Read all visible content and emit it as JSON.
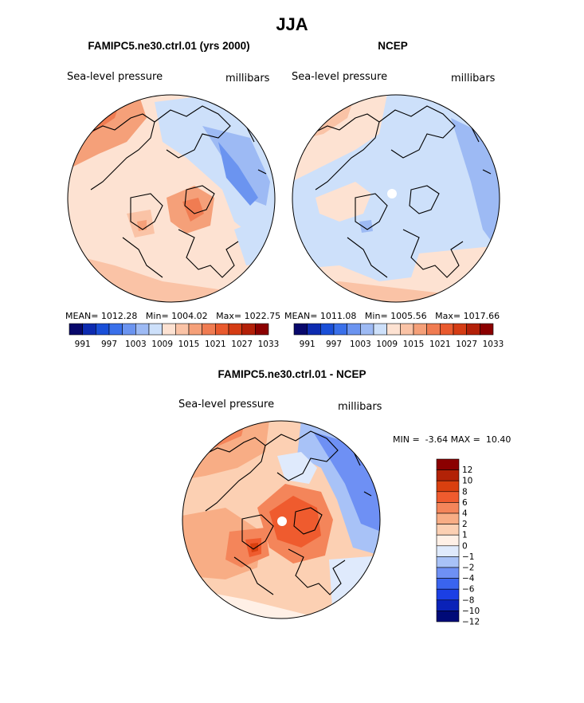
{
  "season": "JJA",
  "colors": {
    "abs_scale": [
      "#08086b",
      "#0d2bb0",
      "#1a4fd8",
      "#3a70ea",
      "#6b94f0",
      "#9dbaf4",
      "#cde0fa",
      "#fde2d2",
      "#fac3a6",
      "#f5a079",
      "#f07c52",
      "#e95a2e",
      "#d53c14",
      "#b32008",
      "#8b0000"
    ],
    "diff_scale": [
      "#000a78",
      "#0a22b8",
      "#1b3fe4",
      "#3a64ef",
      "#6e90f4",
      "#a8c2f7",
      "#dfeafc",
      "#fff0e6",
      "#fcd0b3",
      "#f8ad85",
      "#f4855a",
      "#ef5b2e",
      "#d9400f",
      "#b22206",
      "#8b0000"
    ],
    "coast": "#000000"
  },
  "panels": [
    {
      "title": "FAMIPC5.ne30.ctrl.01 (yrs 2000)",
      "field": "Sea-level pressure",
      "units": "millibars",
      "stats": {
        "mean_label": "MEAN=",
        "mean": "1012.28",
        "min_label": "Min=",
        "min": "1004.02",
        "max_label": "Max=",
        "max": "1022.75"
      }
    },
    {
      "title": "NCEP",
      "field": "Sea-level pressure",
      "units": "millibars",
      "stats": {
        "mean_label": "MEAN=",
        "mean": "1011.08",
        "min_label": "Min=",
        "min": "1005.56",
        "max_label": "Max=",
        "max": "1017.66"
      }
    }
  ],
  "abs_ticks": [
    "991",
    "997",
    "1003",
    "1009",
    "1015",
    "1021",
    "1027",
    "1033"
  ],
  "diff": {
    "title": "FAMIPC5.ne30.ctrl.01 - NCEP",
    "field": "Sea-level pressure",
    "units": "millibars",
    "minmax_label": "MIN =  -3.64 MAX =  10.40",
    "ticks": [
      "12",
      "10",
      "8",
      "6",
      "4",
      "2",
      "1",
      "0",
      "-1",
      "-2",
      "-4",
      "-6",
      "-8",
      "-10",
      "-12"
    ]
  }
}
